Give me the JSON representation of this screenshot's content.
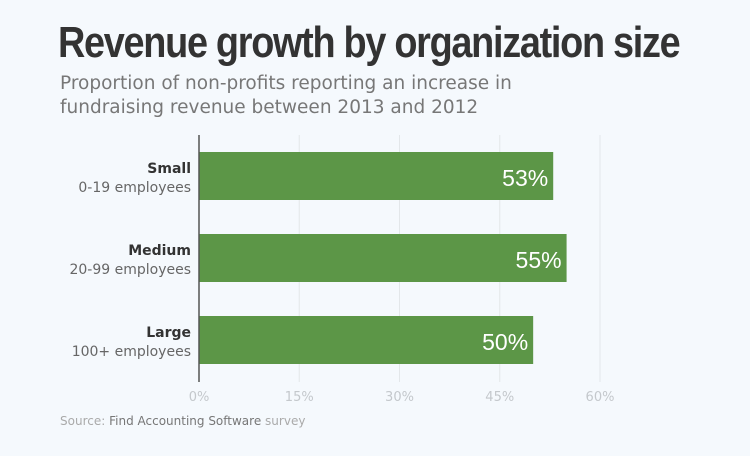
{
  "chart_data": {
    "type": "bar",
    "orientation": "horizontal",
    "title": "Revenue growth by organization size",
    "subtitle": "Proportion of non-profits reporting an increase in fundraising revenue between 2013 and 2012",
    "categories": [
      "Small",
      "Medium",
      "Large"
    ],
    "category_sublabels": [
      "0-19 employees",
      "20-99 employees",
      "100+ employees"
    ],
    "values": [
      53,
      55,
      50
    ],
    "data_labels": [
      "53%",
      "55%",
      "50%"
    ],
    "xlim": [
      0,
      60
    ],
    "xticks": [
      0,
      15,
      30,
      45,
      60
    ],
    "xtick_labels": [
      "0%",
      "15%",
      "30%",
      "45%",
      "60%"
    ],
    "grid": true,
    "bar_color": "#5c9647"
  },
  "source": {
    "prefix": "Source:",
    "name": "Find Accounting Software",
    "suffix": "survey"
  }
}
